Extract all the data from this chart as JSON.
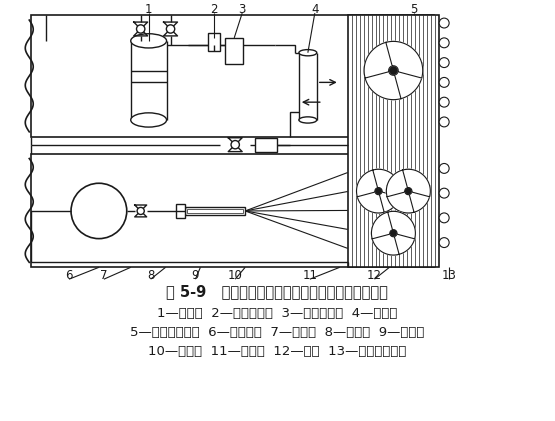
{
  "title": "图 5-9   小型冷藏库风冷式氟利昂制冷机组制冷系统",
  "caption_lines": [
    "1—压缩机  2—高压控制器  3—干燥过滤器  4—储液器",
    "5—风冷式冷凝器  6—热交换器  7—感温包  8—膨胀阀  9—分液器",
    "10—电磁阀  11—冷风机  12—风扇  13—电化霜加热器"
  ],
  "bg_color": "#ffffff",
  "line_color": "#1a1a1a",
  "text_color": "#1a1a1a",
  "title_fontsize": 10.5,
  "caption_fontsize": 9.5,
  "label_fontsize": 8.5
}
